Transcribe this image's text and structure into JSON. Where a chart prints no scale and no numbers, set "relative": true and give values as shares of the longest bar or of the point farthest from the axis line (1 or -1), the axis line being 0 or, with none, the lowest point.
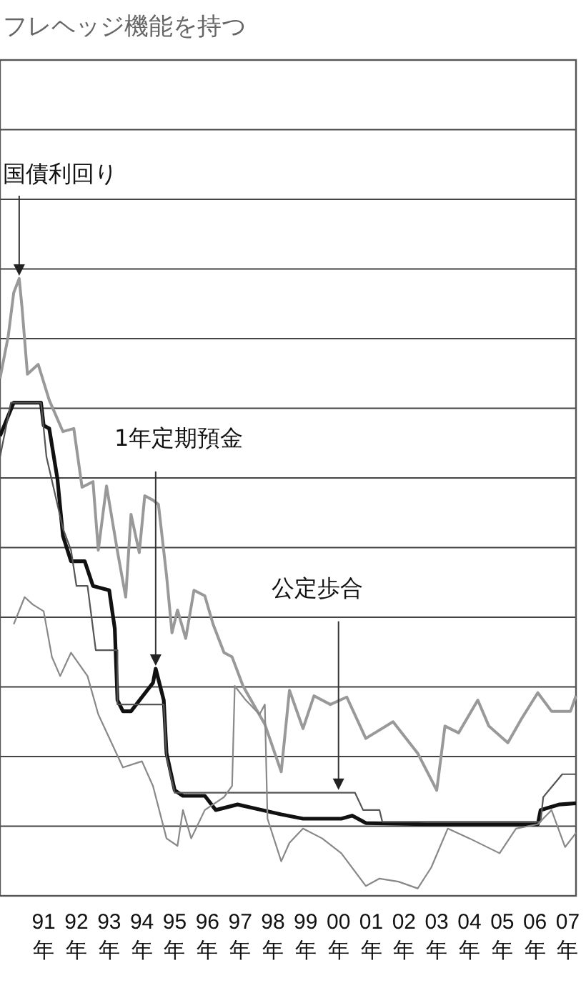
{
  "chart_data": {
    "type": "line",
    "title": "フレヘッジ機能を持つ",
    "relative": true,
    "grid": true,
    "xlim": [
      "1990-03",
      "2007-10"
    ],
    "xticks": [
      {
        "value": "1991-07",
        "label": "91年"
      },
      {
        "value": "1992-07",
        "label": "92年"
      },
      {
        "value": "1993-07",
        "label": "93年"
      },
      {
        "value": "1994-07",
        "label": "94年"
      },
      {
        "value": "1995-07",
        "label": "95年"
      },
      {
        "value": "1996-07",
        "label": "96年"
      },
      {
        "value": "1997-07",
        "label": "97年"
      },
      {
        "value": "1998-07",
        "label": "98年"
      },
      {
        "value": "1999-07",
        "label": "99年"
      },
      {
        "value": "2000-07",
        "label": "00年"
      },
      {
        "value": "2001-07",
        "label": "01年"
      },
      {
        "value": "2002-07",
        "label": "02年"
      },
      {
        "value": "2003-07",
        "label": "03年"
      },
      {
        "value": "2004-07",
        "label": "04年"
      },
      {
        "value": "2005-07",
        "label": "05年"
      },
      {
        "value": "2006-07",
        "label": "06年"
      },
      {
        "value": "2007-07",
        "label": "07年"
      }
    ],
    "series": [
      {
        "color": "#999999",
        "x": [
          "1990-03",
          "1990-06",
          "1990-08",
          "1990-10",
          "1990-11",
          "1991-01",
          "1991-05",
          "1991-09",
          "1992-02",
          "1992-06",
          "1992-09",
          "1993-01",
          "1993-03",
          "1993-06",
          "1993-10",
          "1994-01",
          "1994-03",
          "1994-06",
          "1994-08",
          "1994-11",
          "1995-01",
          "1995-04",
          "1995-06",
          "1995-08",
          "1995-11",
          "1996-02",
          "1996-06",
          "1996-09",
          "1997-01",
          "1997-04",
          "1997-08",
          "1998-01",
          "1998-04",
          "1998-10",
          "1999-01",
          "1999-06",
          "1999-10",
          "2000-04",
          "2000-10",
          "2001-05",
          "2002-03",
          "2002-12",
          "2003-07",
          "2003-10",
          "2004-03",
          "2004-10",
          "2005-02",
          "2005-09",
          "2006-02",
          "2006-08",
          "2007-01",
          "2007-08",
          "2007-10"
        ],
        "values": [
          0.838,
          0.907,
          0.977,
          1.0,
          0.954,
          0.845,
          0.861,
          0.803,
          0.752,
          0.757,
          0.662,
          0.671,
          0.56,
          0.664,
          0.558,
          0.484,
          0.618,
          0.556,
          0.648,
          0.641,
          0.634,
          0.519,
          0.426,
          0.463,
          0.417,
          0.495,
          0.486,
          0.44,
          0.394,
          0.387,
          0.34,
          0.301,
          0.278,
          0.201,
          0.333,
          0.271,
          0.324,
          0.31,
          0.322,
          0.255,
          0.282,
          0.231,
          0.171,
          0.275,
          0.264,
          0.317,
          0.275,
          0.248,
          0.287,
          0.329,
          0.299,
          0.299,
          0.324
        ]
      },
      {
        "color": "#111111",
        "x": [
          "1990-03",
          "1990-08",
          "1991-06",
          "1991-07",
          "1991-09",
          "1991-12",
          "1992-02",
          "1992-05",
          "1992-10",
          "1993-01",
          "1993-07",
          "1993-09",
          "1993-10",
          "1993-12",
          "1994-03",
          "1994-07",
          "1994-11",
          "1994-12",
          "1995-03",
          "1995-04",
          "1995-07",
          "1995-10",
          "1996-06",
          "1996-10",
          "1997-06",
          "1998-01",
          "1998-10",
          "1999-06",
          "2000-08",
          "2000-12",
          "2001-05",
          "2003-03",
          "2006-08",
          "2006-09",
          "2007-04",
          "2007-10"
        ],
        "values": [
          0.745,
          0.799,
          0.799,
          0.762,
          0.757,
          0.676,
          0.583,
          0.542,
          0.542,
          0.502,
          0.495,
          0.433,
          0.317,
          0.299,
          0.299,
          0.322,
          0.345,
          0.368,
          0.317,
          0.231,
          0.171,
          0.162,
          0.162,
          0.139,
          0.148,
          0.141,
          0.132,
          0.125,
          0.125,
          0.13,
          0.118,
          0.116,
          0.116,
          0.139,
          0.148,
          0.15
        ]
      },
      {
        "color": "#555555",
        "x": [
          "1990-03",
          "1990-07",
          "1991-06",
          "1991-07",
          "1991-08",
          "1992-02",
          "1992-05",
          "1992-07",
          "1992-11",
          "1993-02",
          "1993-10",
          "1993-10",
          "1995-03",
          "1995-04",
          "1995-07",
          "2001-01",
          "2001-04",
          "2001-10",
          "2001-11",
          "2006-09",
          "2006-10",
          "2007-05",
          "2007-10"
        ],
        "values": [
          0.711,
          0.799,
          0.799,
          0.757,
          0.711,
          0.595,
          0.56,
          0.502,
          0.502,
          0.398,
          0.398,
          0.31,
          0.31,
          0.225,
          0.167,
          0.167,
          0.139,
          0.139,
          0.12,
          0.12,
          0.16,
          0.197,
          0.197
        ]
      },
      {
        "color": "#888888",
        "x": [
          "1990-08",
          "1990-12",
          "1991-03",
          "1991-07",
          "1991-10",
          "1992-01",
          "1992-05",
          "1992-11",
          "1993-03",
          "1993-12",
          "1994-07",
          "1994-11",
          "1995-04",
          "1995-08",
          "1995-10",
          "1996-01",
          "1996-06",
          "1997-01",
          "1997-04",
          "1997-05",
          "1997-09",
          "1998-02",
          "1998-04",
          "1998-05",
          "1998-10",
          "1999-01",
          "1999-06",
          "2000-01",
          "2000-08",
          "2001-05",
          "2001-10",
          "2002-05",
          "2002-12",
          "2003-05",
          "2003-11",
          "2004-07",
          "2005-06",
          "2005-12",
          "2006-08",
          "2007-01",
          "2007-06",
          "2007-10"
        ],
        "values": [
          0.44,
          0.484,
          0.472,
          0.461,
          0.387,
          0.356,
          0.394,
          0.356,
          0.294,
          0.208,
          0.218,
          0.178,
          0.093,
          0.081,
          0.139,
          0.093,
          0.139,
          0.16,
          0.178,
          0.34,
          0.317,
          0.294,
          0.31,
          0.125,
          0.056,
          0.086,
          0.109,
          0.093,
          0.069,
          0.016,
          0.028,
          0.023,
          0.012,
          0.046,
          0.109,
          0.093,
          0.069,
          0.109,
          0.116,
          0.139,
          0.079,
          0.102
        ]
      }
    ],
    "annotations": [
      {
        "text": "国債利回り",
        "x": "1990-10",
        "y": 1.0
      },
      {
        "text": "1年定期預金",
        "x": "1994-12",
        "y": 0.368
      },
      {
        "text": "公定歩合",
        "x": "2000-07",
        "y": 0.167
      }
    ]
  }
}
